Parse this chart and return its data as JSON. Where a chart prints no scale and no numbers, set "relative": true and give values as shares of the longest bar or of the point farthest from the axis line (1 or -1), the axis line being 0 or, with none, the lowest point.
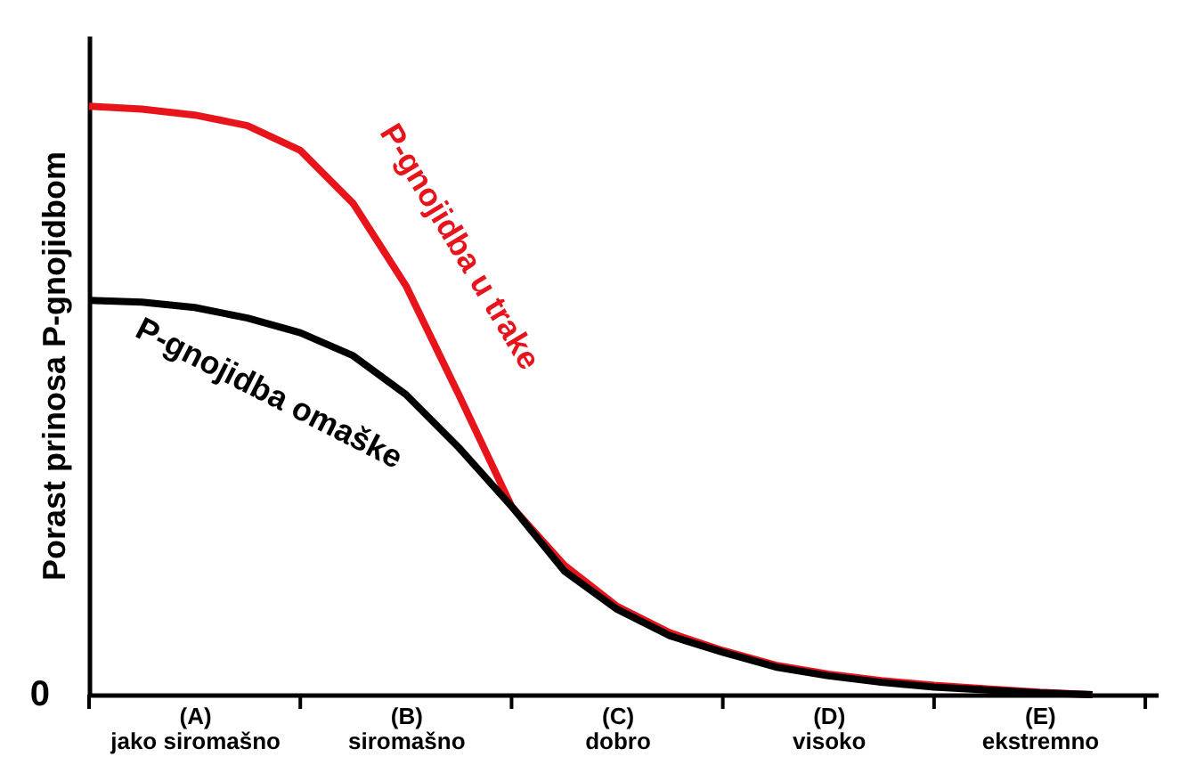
{
  "chart_data": {
    "type": "line",
    "relative": true,
    "ylabel": "Porast prinosa P-gnojidbom",
    "categories": [
      null,
      null,
      "(A)\njako siromašno",
      null,
      null,
      null,
      "(B)\nsiromašno",
      null,
      null,
      null,
      "(C)\ndobro",
      null,
      null,
      null,
      "(D)\nvisoko",
      null,
      null,
      null,
      "(E)\nekstremno",
      null
    ],
    "annotations": [
      "0"
    ],
    "grid": false,
    "marker": "none",
    "line_style": "solid",
    "series": [
      {
        "name": "P-gnojidba u trake",
        "color": "#e8141c",
        "values": [
          1.0,
          0.995,
          0.985,
          0.967,
          0.925,
          0.835,
          0.695,
          0.51,
          0.32,
          0.22,
          0.15,
          0.105,
          0.075,
          0.05,
          0.035,
          0.024,
          0.016,
          0.01,
          0.004,
          0
        ]
      },
      {
        "name": "P-gnojidba omaške",
        "color": "#000000",
        "values": [
          0.67,
          0.667,
          0.658,
          0.64,
          0.615,
          0.576,
          0.51,
          0.42,
          0.32,
          0.21,
          0.145,
          0.1,
          0.072,
          0.047,
          0.032,
          0.021,
          0.013,
          0.008,
          0.003,
          0
        ]
      }
    ]
  }
}
